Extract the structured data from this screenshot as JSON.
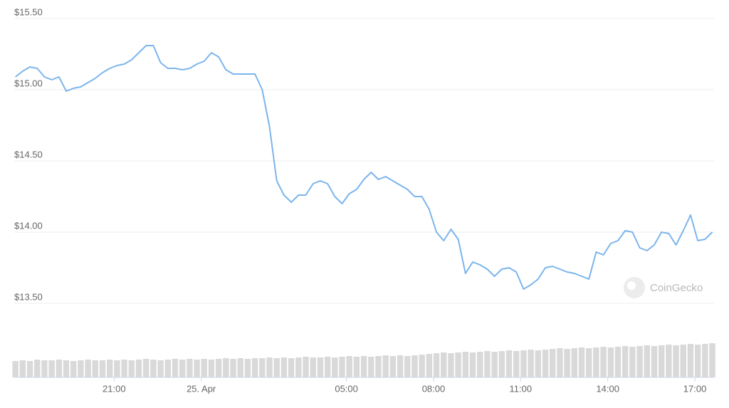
{
  "chart_data": {
    "type": "line",
    "x": [
      17.6,
      17.85,
      18.1,
      18.35,
      18.6,
      18.85,
      19.1,
      19.35,
      19.6,
      19.85,
      20.1,
      20.35,
      20.6,
      20.85,
      21.1,
      21.35,
      21.6,
      21.85,
      22.1,
      22.35,
      22.6,
      22.85,
      23.1,
      23.35,
      23.6,
      23.85,
      24.1,
      24.35,
      24.6,
      24.85,
      25.1,
      25.35,
      25.6,
      25.85,
      26.1,
      26.35,
      26.6,
      26.85,
      27.1,
      27.35,
      27.6,
      27.85,
      28.1,
      28.35,
      28.6,
      28.85,
      29.1,
      29.35,
      29.6,
      29.85,
      30.1,
      30.35,
      30.6,
      30.85,
      31.1,
      31.35,
      31.6,
      31.85,
      32.1,
      32.35,
      32.6,
      32.85,
      33.1,
      33.35,
      33.6,
      33.85,
      34.1,
      34.35,
      34.6,
      34.85,
      35.1,
      35.35,
      35.6,
      35.85,
      36.1,
      36.35,
      36.6,
      36.85,
      37.1,
      37.35,
      37.6,
      37.85,
      38.1,
      38.35,
      38.6,
      38.85,
      39.1,
      39.35,
      39.6,
      39.85,
      40.1,
      40.35,
      40.6,
      40.85,
      41.1,
      41.35,
      41.6
    ],
    "series": [
      {
        "color": "#7cb5ec",
        "values": [
          15.09,
          15.13,
          15.16,
          15.15,
          15.09,
          15.07,
          15.09,
          14.99,
          15.01,
          15.02,
          15.05,
          15.08,
          15.12,
          15.15,
          15.17,
          15.18,
          15.21,
          15.26,
          15.31,
          15.31,
          15.19,
          15.15,
          15.15,
          15.14,
          15.15,
          15.18,
          15.2,
          15.26,
          15.23,
          15.14,
          15.11,
          15.11,
          15.11,
          15.11,
          15.0,
          14.74,
          14.36,
          14.26,
          14.21,
          14.26,
          14.26,
          14.34,
          14.36,
          14.34,
          14.25,
          14.2,
          14.27,
          14.3,
          14.37,
          14.42,
          14.37,
          14.39,
          14.36,
          14.33,
          14.3,
          14.25,
          14.25,
          14.16,
          14.0,
          13.94,
          14.02,
          13.95,
          13.71,
          13.79,
          13.77,
          13.74,
          13.69,
          13.74,
          13.75,
          13.72,
          13.6,
          13.63,
          13.67,
          13.75,
          13.76,
          13.74,
          13.72,
          13.71,
          13.69,
          13.67,
          13.86,
          13.84,
          13.92,
          13.94,
          14.01,
          14.0,
          13.89,
          13.87,
          13.91,
          14.0,
          13.99,
          13.91,
          14.01,
          14.12,
          13.94,
          13.95,
          14.0
        ]
      }
    ],
    "volume": {
      "color": "#d9d9d9",
      "ylim": [
        0,
        100
      ],
      "values": [
        23,
        24,
        23,
        25,
        24,
        24,
        25,
        24,
        23,
        24,
        25,
        24,
        24,
        25,
        24,
        25,
        24,
        25,
        26,
        25,
        24,
        25,
        26,
        25,
        26,
        25,
        26,
        25,
        26,
        27,
        26,
        27,
        26,
        27,
        27,
        28,
        27,
        28,
        27,
        28,
        29,
        28,
        28,
        29,
        28,
        29,
        30,
        29,
        30,
        29,
        30,
        31,
        30,
        31,
        30,
        31,
        32,
        33,
        34,
        35,
        34,
        35,
        36,
        35,
        36,
        37,
        36,
        37,
        38,
        37,
        38,
        39,
        38,
        39,
        40,
        41,
        40,
        41,
        42,
        41,
        42,
        43,
        42,
        43,
        44,
        43,
        44,
        45,
        44,
        45,
        46,
        45,
        46,
        47,
        46,
        47,
        48
      ]
    },
    "xlim": [
      17.56,
      41.66
    ],
    "ylim": [
      13.5,
      15.5
    ],
    "yticks": [
      {
        "value": 15.5,
        "label": "$15.50"
      },
      {
        "value": 15.0,
        "label": "$15.00"
      },
      {
        "value": 14.5,
        "label": "$14.50"
      },
      {
        "value": 14.0,
        "label": "$14.00"
      },
      {
        "value": 13.5,
        "label": "$13.50"
      }
    ],
    "xticks": [
      {
        "value": 21,
        "label": "21:00"
      },
      {
        "value": 24,
        "label": "25. Apr"
      },
      {
        "value": 29,
        "label": "05:00"
      },
      {
        "value": 32,
        "label": "08:00"
      },
      {
        "value": 35,
        "label": "11:00"
      },
      {
        "value": 38,
        "label": "14:00"
      },
      {
        "value": 41,
        "label": "17:00"
      }
    ],
    "grid": true,
    "watermark": "CoinGecko"
  }
}
